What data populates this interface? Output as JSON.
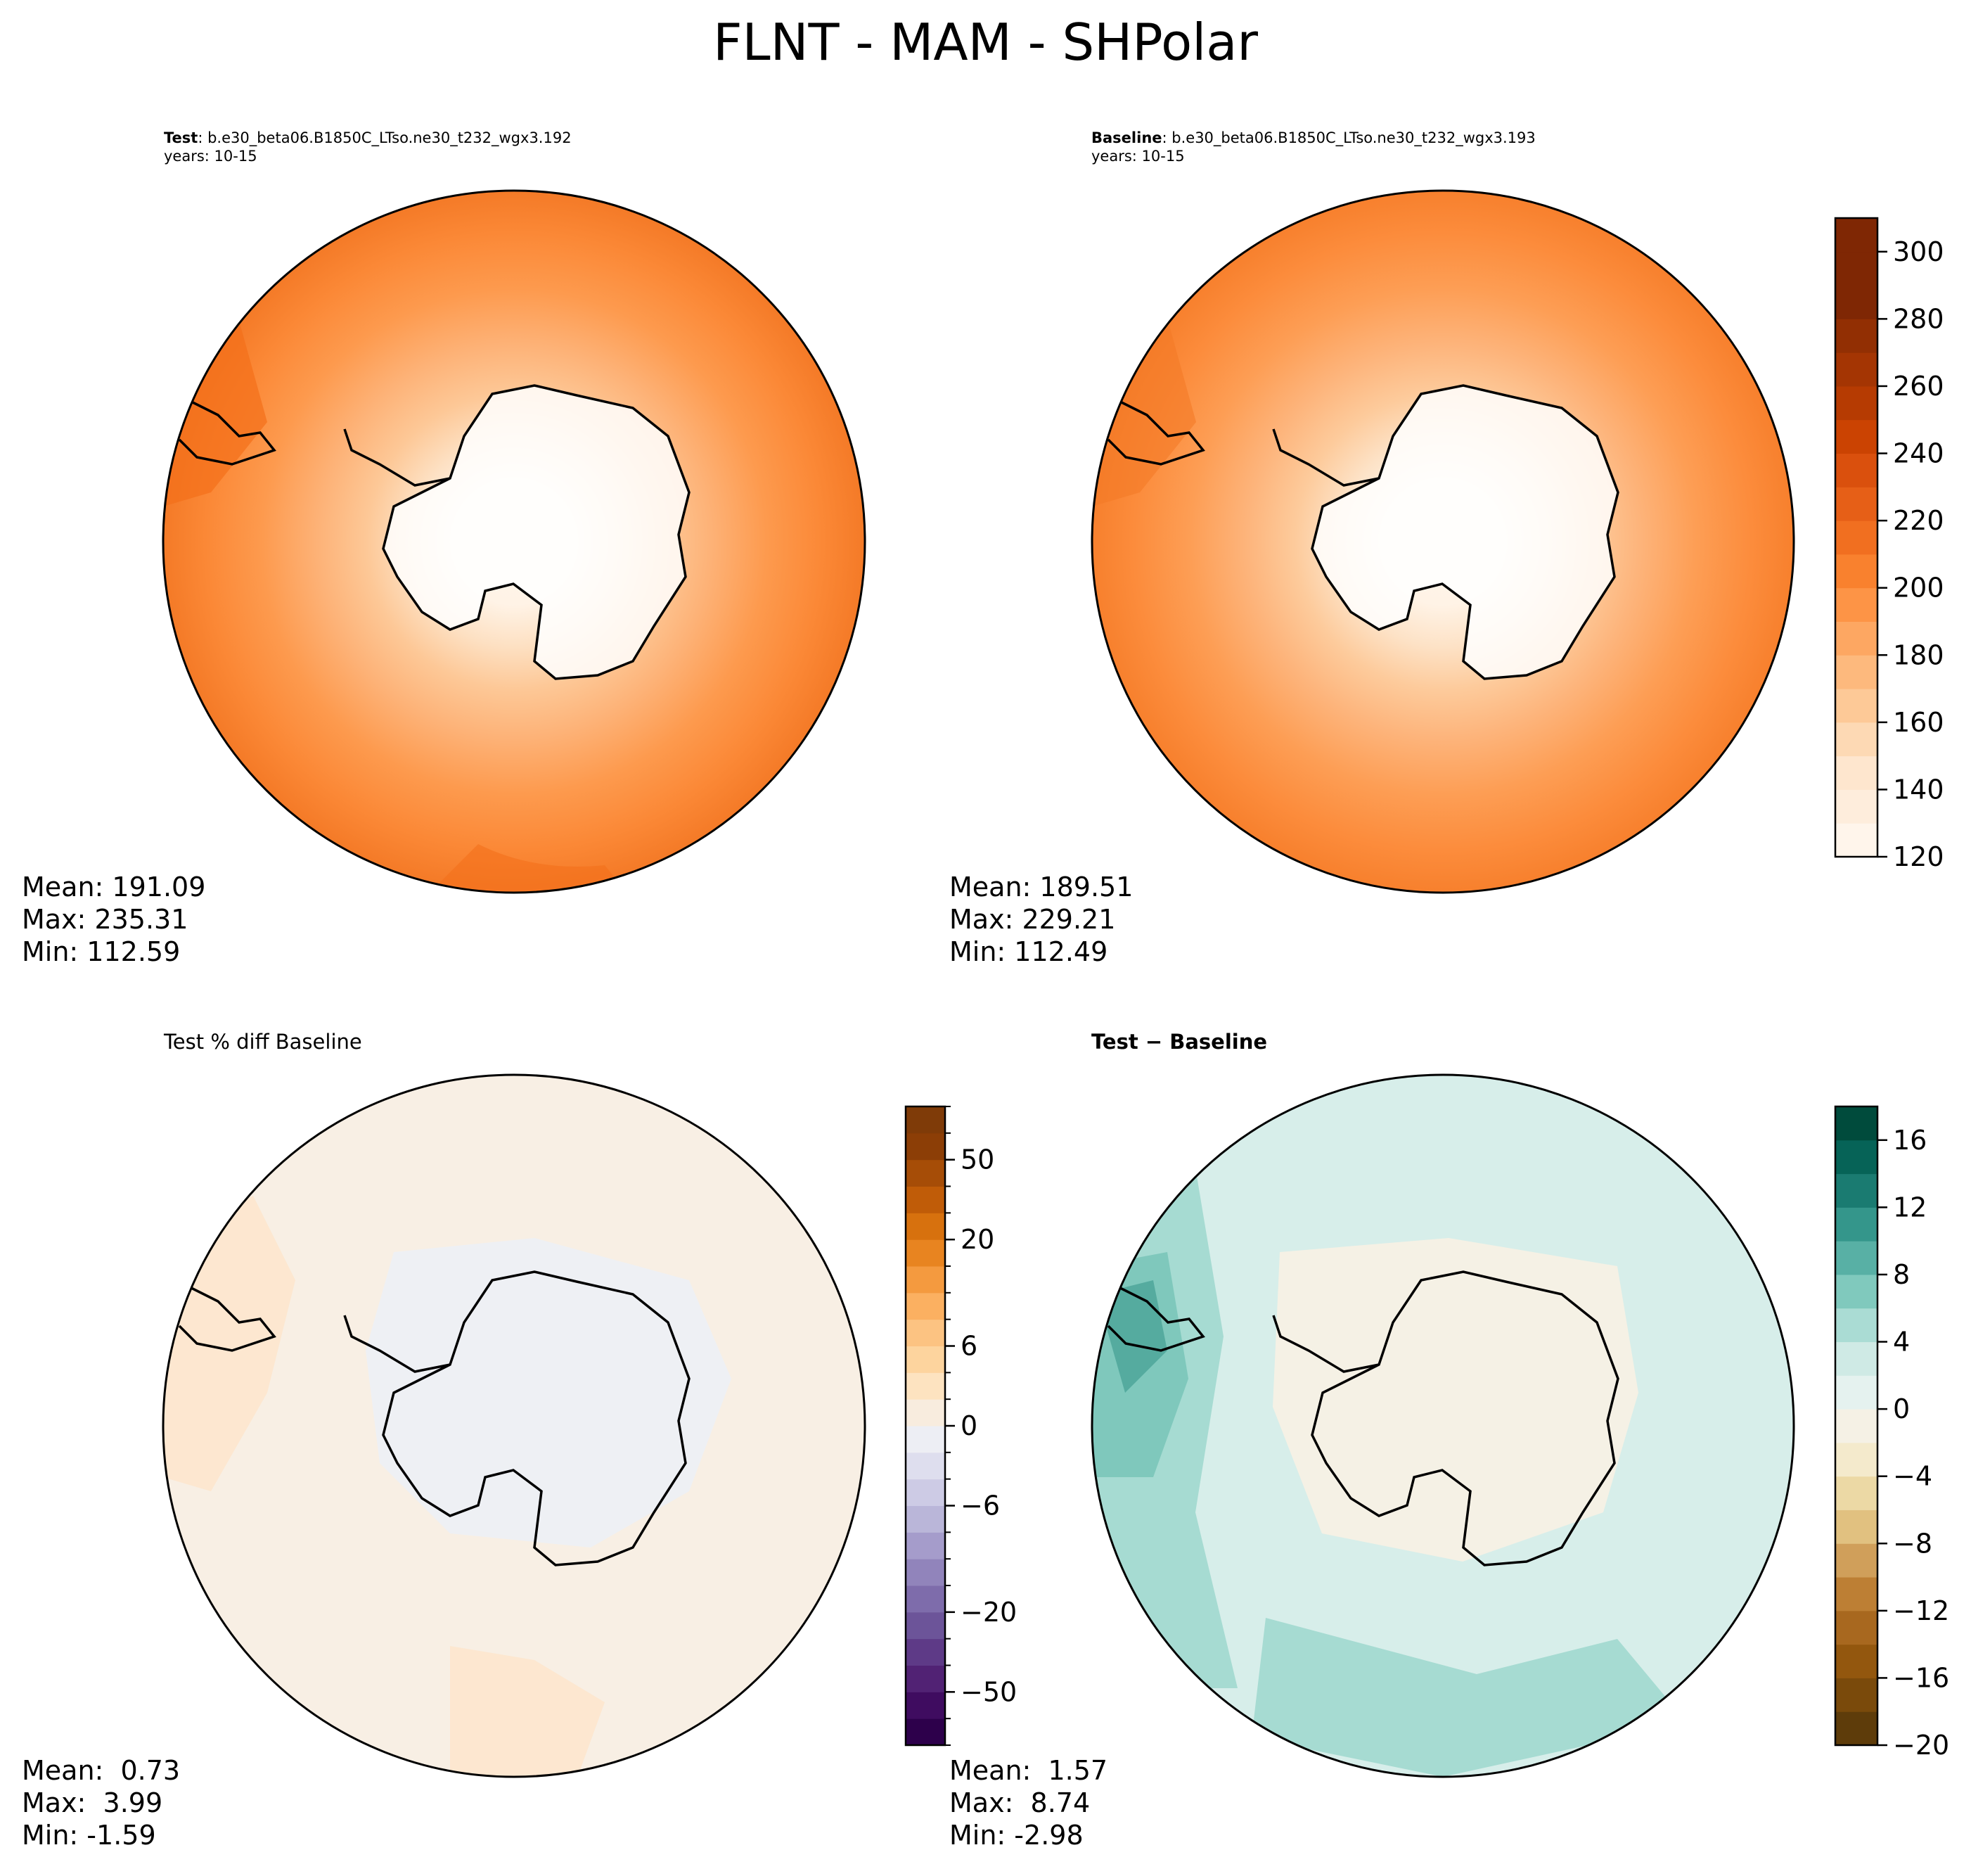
{
  "title": "FLNT - MAM - SHPolar",
  "panels": [
    {
      "id": "test",
      "label_bold": "Test",
      "label_rest": ": b.e30_beta06.B1850C_LTso.ne30_t232_wgx3.192",
      "line2": "years: 10-15",
      "stats": {
        "mean_label": "Mean: 191.09",
        "max_label": "Max: 235.31",
        "min_label": "Min: 112.59"
      }
    },
    {
      "id": "baseline",
      "label_bold": "Baseline",
      "label_rest": ": b.e30_beta06.B1850C_LTso.ne30_t232_wgx3.193",
      "line2": "years: 10-15",
      "stats": {
        "mean_label": "Mean: 189.51",
        "max_label": "Max: 229.21",
        "min_label": "Min: 112.49"
      }
    },
    {
      "id": "pctdiff",
      "label_plain": "Test % diff Baseline",
      "stats": {
        "mean_label": "Mean:  0.73",
        "max_label": "Max:  3.99",
        "min_label": "Min: -1.59"
      }
    },
    {
      "id": "diff",
      "label_bold": "Test − Baseline",
      "stats": {
        "mean_label": "Mean:  1.57",
        "max_label": "Max:  8.74",
        "min_label": "Min: -2.98"
      }
    }
  ],
  "chart_data": [
    {
      "type": "heatmap",
      "name": "FLNT test",
      "projection": "south polar stereographic",
      "colormap": "Oranges",
      "field_summary": {
        "mean": 191.09,
        "max": 235.31,
        "min": 112.59
      },
      "shared_colorbar": {
        "levels": [
          120,
          130,
          140,
          150,
          160,
          170,
          180,
          190,
          200,
          210,
          220,
          230,
          240,
          250,
          260,
          270,
          280,
          290,
          300,
          310
        ],
        "tick_labels": [
          "120",
          "140",
          "160",
          "180",
          "200",
          "220",
          "240",
          "260",
          "280",
          "300"
        ],
        "colors": [
          "#fff5eb",
          "#feeddc",
          "#fee6ce",
          "#fdd9b4",
          "#fdc997",
          "#fdb97d",
          "#fda762",
          "#fd9446",
          "#f9812e",
          "#f16f20",
          "#e65f17",
          "#da500d",
          "#cb4302",
          "#b63b02",
          "#a43503",
          "#922f03",
          "#7f2704",
          "#7f2704",
          "#7f2704"
        ]
      }
    },
    {
      "type": "heatmap",
      "name": "FLNT baseline",
      "projection": "south polar stereographic",
      "colormap": "Oranges",
      "field_summary": {
        "mean": 189.51,
        "max": 229.21,
        "min": 112.49
      }
    },
    {
      "type": "heatmap",
      "name": "Test % diff Baseline",
      "projection": "south polar stereographic",
      "colormap": "PuOr_r",
      "field_summary": {
        "mean": 0.73,
        "max": 3.99,
        "min": -1.59
      },
      "colorbar": {
        "levels": [
          -100,
          -75,
          -50,
          -40,
          -30,
          -20,
          -15,
          -10,
          -8,
          -6,
          -4,
          -2,
          0,
          2,
          4,
          6,
          8,
          10,
          15,
          20,
          30,
          40,
          50,
          75,
          100
        ],
        "tick_labels": [
          "−50",
          "−20",
          "−6",
          "0",
          "6",
          "20",
          "50"
        ],
        "tick_values": [
          -50,
          -20,
          -6,
          0,
          6,
          20,
          50
        ],
        "colors": [
          "#2d004b",
          "#3f0c60",
          "#512274",
          "#5e3a87",
          "#6c5499",
          "#7e6cab",
          "#9184bb",
          "#a59ccb",
          "#bab6d9",
          "#cdcbe5",
          "#dedeee",
          "#edeef4",
          "#f8ecde",
          "#fde3c0",
          "#fdd49e",
          "#fcc382",
          "#fbb061",
          "#f49a3f",
          "#e88420",
          "#d7710e",
          "#c05c08",
          "#a64d07",
          "#8c3e06",
          "#7f3b08"
        ]
      }
    },
    {
      "type": "heatmap",
      "name": "Test − Baseline",
      "projection": "south polar stereographic",
      "colormap": "BrBG",
      "field_summary": {
        "mean": 1.57,
        "max": 8.74,
        "min": -2.98
      },
      "colorbar": {
        "levels": [
          -20,
          -18,
          -16,
          -14,
          -12,
          -10,
          -8,
          -6,
          -4,
          -2,
          0,
          2,
          4,
          6,
          8,
          10,
          12,
          14,
          16,
          18
        ],
        "tick_labels": [
          "−20",
          "−16",
          "−12",
          "−8",
          "−4",
          "0",
          "4",
          "8",
          "12",
          "16"
        ],
        "tick_values": [
          -20,
          -16,
          -12,
          -8,
          -4,
          0,
          4,
          8,
          12,
          16
        ],
        "colors": [
          "#5e3c0a",
          "#7a4a0b",
          "#93570e",
          "#a8681f",
          "#bd7f34",
          "#d09f5a",
          "#e1c180",
          "#ecd9a5",
          "#f4eacc",
          "#f5f1e5",
          "#e5f2ef",
          "#cfeae5",
          "#aadcd4",
          "#80c9bd",
          "#58b0a5",
          "#34968b",
          "#1a7b71",
          "#066357",
          "#004b3c"
        ]
      }
    }
  ]
}
